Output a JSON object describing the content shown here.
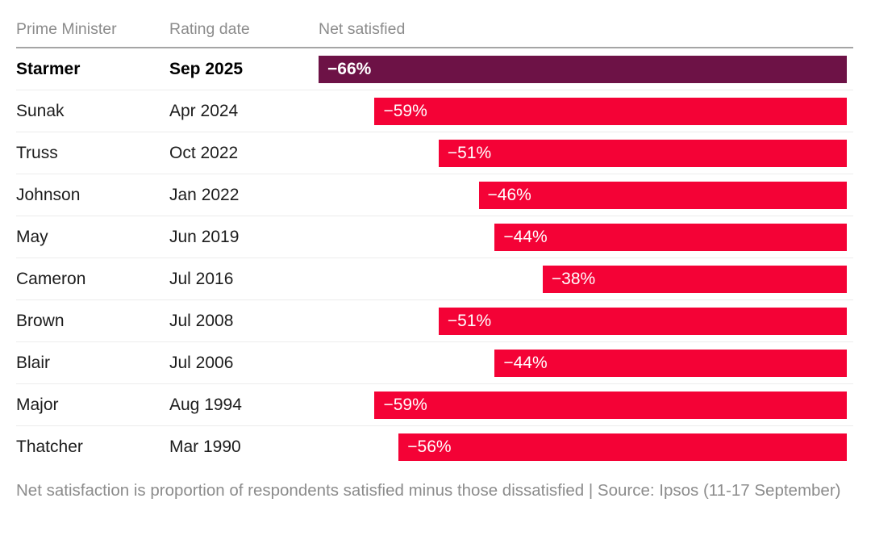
{
  "chart_data": {
    "type": "bar",
    "orientation": "horizontal",
    "columns": {
      "pm": "Prime Minister",
      "date": "Rating date",
      "value": "Net satisfied"
    },
    "categories": [
      "Starmer",
      "Sunak",
      "Truss",
      "Johnson",
      "May",
      "Cameron",
      "Brown",
      "Blair",
      "Major",
      "Thatcher"
    ],
    "rating_dates": [
      "Sep 2025",
      "Apr 2024",
      "Oct 2022",
      "Jan 2022",
      "Jun 2019",
      "Jul 2016",
      "Jul 2008",
      "Jul 2006",
      "Aug 1994",
      "Mar 1990"
    ],
    "values": [
      -66,
      -59,
      -51,
      -46,
      -44,
      -38,
      -51,
      -44,
      -59,
      -56
    ],
    "value_labels": [
      "−66%",
      "−59%",
      "−51%",
      "−46%",
      "−44%",
      "−38%",
      "−51%",
      "−44%",
      "−59%",
      "−56%"
    ],
    "xlim": [
      -66,
      0
    ],
    "highlight_index": 0,
    "grid": false,
    "legend": false,
    "footnote": "Net satisfaction is proportion of respondents satisfied minus those dissatisfied | Source: Ipsos (11-17 September)"
  },
  "colors": {
    "bar": "#f40236",
    "highlight_bar": "#6d1246",
    "bar_label": "#ffffff",
    "header_text": "#8c8c8c",
    "row_text": "#1c1c1c",
    "rule": "#a5a5a5",
    "row_divider": "#ececec",
    "footnote_text": "#8c8c8c"
  }
}
